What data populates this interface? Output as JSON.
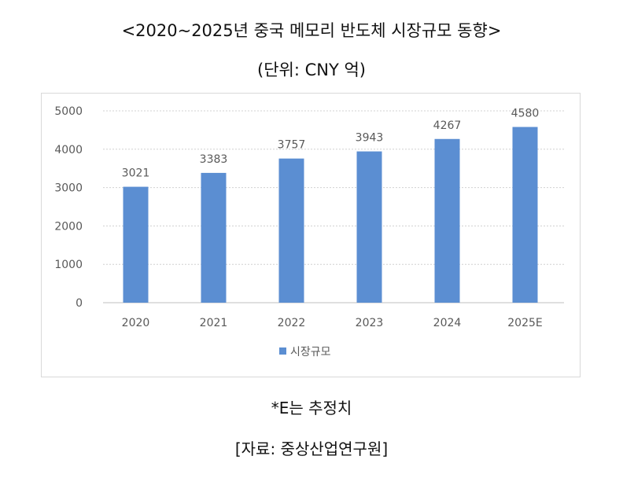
{
  "header": {
    "title": "<2020~2025년 중국 메모리 반도체 시장규모 동향>",
    "subtitle": "(단위: CNY 억)"
  },
  "footer": {
    "note": "*E는 추정치",
    "source": "[자료: 중상산업연구원]"
  },
  "colors": {
    "bar": "#5B8ED2",
    "grid": "#d0d0d0",
    "axis": "#bfbfbf",
    "text": "#595959"
  },
  "chart_data": {
    "type": "bar",
    "categories": [
      "2020",
      "2021",
      "2022",
      "2023",
      "2024",
      "2025E"
    ],
    "series": [
      {
        "name": "시장규모",
        "values": [
          3021,
          3383,
          3757,
          3943,
          4267,
          4580
        ]
      }
    ],
    "data_labels": [
      "3021",
      "3383",
      "3757",
      "3943",
      "4267",
      "4580"
    ],
    "yticks": [
      "0",
      "1000",
      "2000",
      "3000",
      "4000",
      "5000"
    ],
    "ylim": [
      0,
      5000
    ],
    "grid": true,
    "legend": "bottom-center"
  }
}
